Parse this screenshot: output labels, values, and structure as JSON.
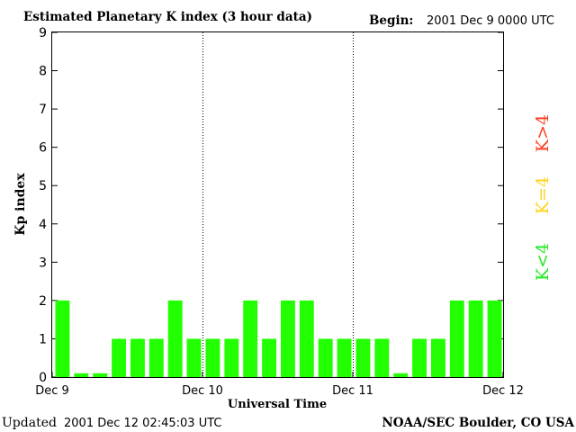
{
  "header": {
    "title": "Estimated Planetary K index (3 hour data)",
    "begin_label": "Begin:",
    "begin_value": "2001 Dec 9 0000 UTC"
  },
  "footer": {
    "updated_label": "Updated",
    "updated_value": "2001 Dec 12 02:45:03 UTC",
    "source": "NOAA/SEC Boulder, CO USA"
  },
  "legend": {
    "k_gt4": "K>4",
    "k_eq4": "K=4",
    "k_lt4": "K<4",
    "colors": {
      "gt4": "#ff3b1f",
      "eq4": "#ffd21a",
      "lt4": "#22e822"
    }
  },
  "chart_data": {
    "type": "bar",
    "title": "Estimated Planetary K index (3 hour data)",
    "xlabel": "Universal Time",
    "ylabel": "Kp index",
    "ylim": [
      0,
      9
    ],
    "yticks": [
      0,
      1,
      2,
      3,
      4,
      5,
      6,
      7,
      8,
      9
    ],
    "xticks": [
      "Dec 9",
      "Dec 10",
      "Dec 11",
      "Dec 12"
    ],
    "bar_color": "#22ff00",
    "grid": false,
    "day_dividers": [
      "Dec 10",
      "Dec 11"
    ],
    "values": [
      2,
      0.1,
      0.1,
      1,
      1,
      1,
      2,
      1,
      1,
      1,
      2,
      1,
      2,
      2,
      1,
      1,
      1,
      1,
      0.1,
      1,
      1,
      2,
      2,
      2
    ]
  }
}
